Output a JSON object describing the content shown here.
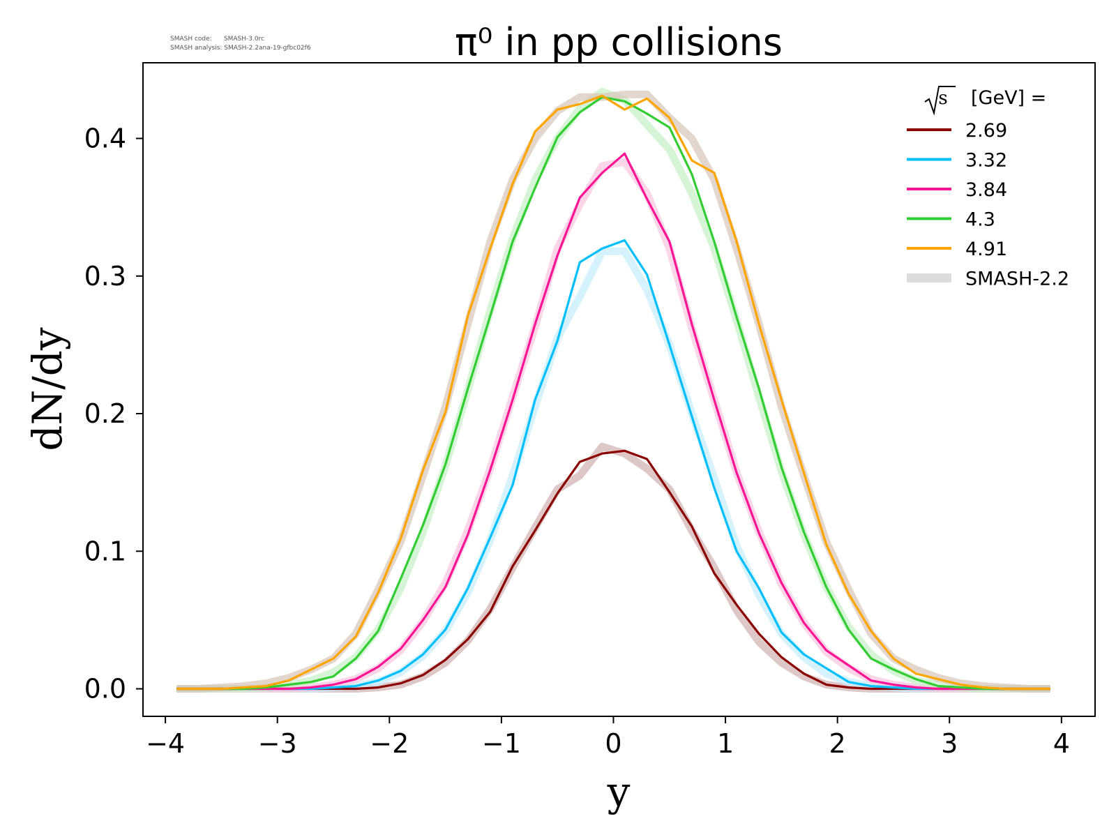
{
  "meta": {
    "line1": "SMASH code:      SMASH-3.0rc",
    "line2": "SMASH analysis: SMASH-2.2ana-19-gfbc02f6"
  },
  "chart_data": {
    "type": "line",
    "title": "π⁰ in pp collisions",
    "xlabel": "y",
    "ylabel": "dN/dy",
    "xlim": [
      -4.2,
      4.3
    ],
    "ylim": [
      -0.02,
      0.455
    ],
    "xticks": [
      -4,
      -3,
      -2,
      -1,
      0,
      1,
      2,
      3,
      4
    ],
    "xtick_labels": [
      "−4",
      "−3",
      "−2",
      "−1",
      "0",
      "1",
      "2",
      "3",
      "4"
    ],
    "yticks": [
      0.0,
      0.1,
      0.2,
      0.3,
      0.4
    ],
    "ytick_labels": [
      "0.0",
      "0.1",
      "0.2",
      "0.3",
      "0.4"
    ],
    "grid": false,
    "legend_position": "top-right",
    "legend_title": "[GeV] =",
    "legend_title_symbol": "√s",
    "x": [
      -3.9,
      -3.7,
      -3.5,
      -3.3,
      -3.1,
      -2.9,
      -2.7,
      -2.5,
      -2.3,
      -2.1,
      -1.9,
      -1.7,
      -1.5,
      -1.3,
      -1.1,
      -0.9,
      -0.7,
      -0.5,
      -0.3,
      -0.1,
      0.1,
      0.3,
      0.5,
      0.7,
      0.9,
      1.1,
      1.3,
      1.5,
      1.7,
      1.9,
      2.1,
      2.3,
      2.5,
      2.7,
      2.9,
      3.1,
      3.3,
      3.5,
      3.7,
      3.9
    ],
    "series": [
      {
        "name": "2.69",
        "color": "#8b0000",
        "values": [
          0,
          0,
          0,
          0,
          0,
          0,
          0,
          0,
          0,
          0.001,
          0.004,
          0.01,
          0.021,
          0.036,
          0.056,
          0.089,
          0.115,
          0.142,
          0.165,
          0.171,
          0.173,
          0.167,
          0.143,
          0.118,
          0.084,
          0.061,
          0.04,
          0.023,
          0.011,
          0.003,
          0.001,
          0,
          0,
          0,
          0,
          0,
          0,
          0,
          0,
          0
        ]
      },
      {
        "name": "3.32",
        "color": "#00bfff",
        "values": [
          0,
          0,
          0,
          0,
          0,
          0,
          0,
          0.001,
          0.002,
          0.006,
          0.013,
          0.025,
          0.043,
          0.073,
          0.11,
          0.148,
          0.21,
          0.253,
          0.31,
          0.32,
          0.326,
          0.301,
          0.25,
          0.198,
          0.146,
          0.1,
          0.073,
          0.041,
          0.025,
          0.015,
          0.005,
          0.002,
          0.001,
          0,
          0,
          0,
          0,
          0,
          0,
          0
        ]
      },
      {
        "name": "3.84",
        "color": "#ff1493",
        "values": [
          0,
          0,
          0,
          0,
          0,
          0,
          0.001,
          0.003,
          0.007,
          0.016,
          0.029,
          0.05,
          0.074,
          0.112,
          0.159,
          0.21,
          0.265,
          0.315,
          0.357,
          0.375,
          0.389,
          0.356,
          0.325,
          0.265,
          0.21,
          0.157,
          0.113,
          0.077,
          0.048,
          0.028,
          0.017,
          0.006,
          0.003,
          0.001,
          0,
          0,
          0,
          0,
          0,
          0
        ]
      },
      {
        "name": "4.3",
        "color": "#32cd32",
        "values": [
          0,
          0,
          0,
          0,
          0.001,
          0.003,
          0.005,
          0.009,
          0.022,
          0.042,
          0.08,
          0.119,
          0.163,
          0.218,
          0.271,
          0.325,
          0.364,
          0.401,
          0.419,
          0.43,
          0.427,
          0.418,
          0.408,
          0.374,
          0.325,
          0.27,
          0.218,
          0.161,
          0.114,
          0.074,
          0.043,
          0.022,
          0.014,
          0.007,
          0.002,
          0.001,
          0,
          0,
          0,
          0
        ]
      },
      {
        "name": "4.91",
        "color": "#ffa500",
        "values": [
          0,
          0,
          0,
          0.001,
          0.002,
          0.006,
          0.014,
          0.022,
          0.038,
          0.07,
          0.109,
          0.159,
          0.201,
          0.271,
          0.32,
          0.367,
          0.405,
          0.421,
          0.425,
          0.431,
          0.421,
          0.429,
          0.415,
          0.384,
          0.375,
          0.325,
          0.265,
          0.21,
          0.157,
          0.105,
          0.069,
          0.042,
          0.022,
          0.011,
          0.007,
          0.003,
          0.001,
          0,
          0,
          0
        ]
      }
    ],
    "reference": {
      "name": "SMASH-2.2",
      "legend_color": "#dcdcdc",
      "band_colors": [
        "#d2b4b4",
        "#c8eefc",
        "#f8c8e0",
        "#c8f0c8",
        "#d8c8bc"
      ],
      "values": [
        [
          0,
          0,
          0,
          0,
          0,
          0,
          0,
          0,
          0,
          0.001,
          0.003,
          0.009,
          0.019,
          0.035,
          0.058,
          0.088,
          0.117,
          0.145,
          0.155,
          0.176,
          0.171,
          0.16,
          0.145,
          0.115,
          0.088,
          0.057,
          0.034,
          0.019,
          0.009,
          0.003,
          0.001,
          0,
          0,
          0,
          0,
          0,
          0,
          0,
          0,
          0
        ],
        [
          0,
          0,
          0,
          0,
          0,
          0,
          0,
          0.001,
          0.002,
          0.005,
          0.012,
          0.024,
          0.042,
          0.07,
          0.108,
          0.155,
          0.205,
          0.255,
          0.285,
          0.318,
          0.318,
          0.29,
          0.25,
          0.2,
          0.153,
          0.104,
          0.068,
          0.04,
          0.023,
          0.011,
          0.005,
          0.002,
          0.001,
          0,
          0,
          0,
          0,
          0,
          0,
          0
        ],
        [
          0,
          0,
          0,
          0,
          0,
          0,
          0.001,
          0.003,
          0.007,
          0.015,
          0.028,
          0.049,
          0.077,
          0.115,
          0.16,
          0.212,
          0.263,
          0.32,
          0.352,
          0.38,
          0.383,
          0.36,
          0.32,
          0.262,
          0.21,
          0.157,
          0.114,
          0.076,
          0.048,
          0.027,
          0.015,
          0.007,
          0.003,
          0.001,
          0,
          0,
          0,
          0,
          0,
          0
        ],
        [
          0,
          0,
          0,
          0,
          0.001,
          0.003,
          0.006,
          0.012,
          0.023,
          0.043,
          0.073,
          0.114,
          0.162,
          0.217,
          0.275,
          0.327,
          0.37,
          0.4,
          0.422,
          0.434,
          0.428,
          0.41,
          0.392,
          0.36,
          0.32,
          0.268,
          0.212,
          0.158,
          0.112,
          0.074,
          0.045,
          0.025,
          0.013,
          0.006,
          0.003,
          0.001,
          0,
          0,
          0,
          0
        ],
        [
          0,
          0,
          0.001,
          0.002,
          0.004,
          0.008,
          0.014,
          0.022,
          0.04,
          0.072,
          0.107,
          0.155,
          0.205,
          0.265,
          0.325,
          0.37,
          0.4,
          0.42,
          0.43,
          0.43,
          0.432,
          0.432,
          0.415,
          0.4,
          0.37,
          0.32,
          0.265,
          0.205,
          0.155,
          0.107,
          0.072,
          0.04,
          0.022,
          0.014,
          0.008,
          0.004,
          0.002,
          0.001,
          0,
          0
        ]
      ]
    }
  }
}
